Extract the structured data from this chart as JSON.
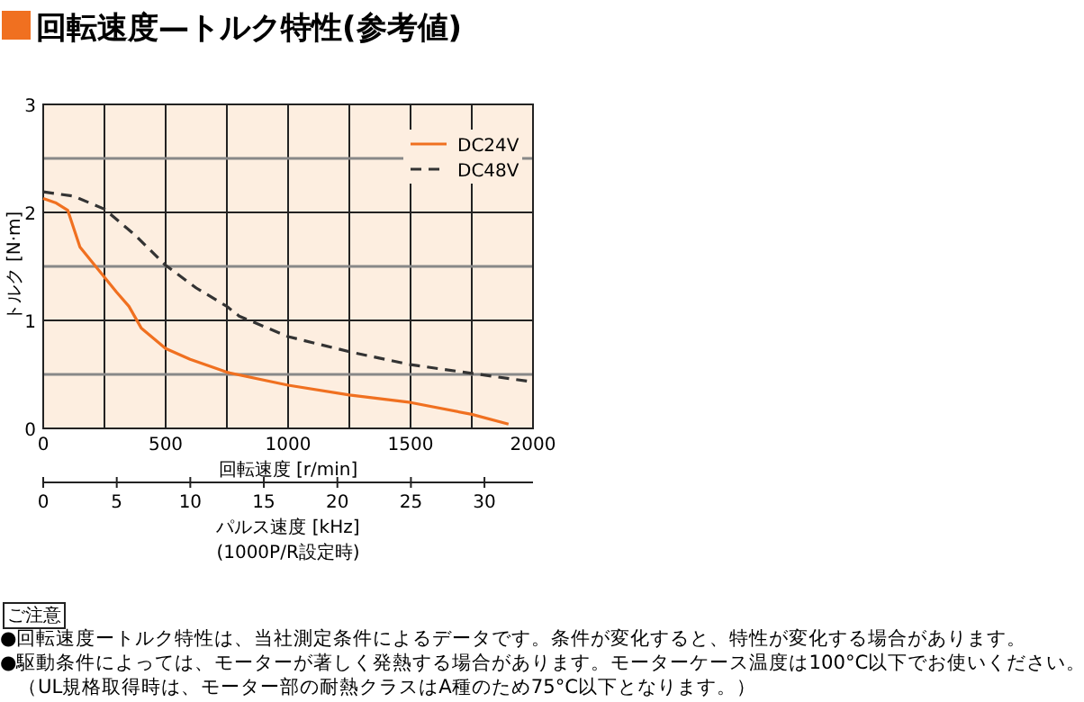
{
  "chart_data": {
    "type": "line",
    "title": "回転速度—トルク特性(参考値)",
    "xlabel": "回転速度 [r/min]",
    "ylabel": "トルク [N·m]",
    "x2label": "パルス速度 [kHz]",
    "xlim": [
      0,
      2000
    ],
    "xticks": [
      0,
      500,
      1000,
      1500,
      2000
    ],
    "ylim": [
      0,
      3
    ],
    "yticks": [
      0,
      1,
      2,
      3
    ],
    "x2lim": [
      0,
      33.3
    ],
    "x2ticks": [
      0,
      5,
      10,
      15,
      20,
      25,
      30
    ],
    "grid": true,
    "legend": "top right",
    "series": [
      {
        "name": "DC24V",
        "color": "#f07020",
        "line_style": "solid",
        "x": [
          0,
          50,
          100,
          150,
          200,
          250,
          300,
          350,
          400,
          500,
          600,
          750,
          1000,
          1250,
          1500,
          1750,
          1900
        ],
        "values": [
          2.13,
          2.09,
          2.02,
          1.68,
          1.54,
          1.4,
          1.26,
          1.13,
          0.93,
          0.74,
          0.64,
          0.52,
          0.4,
          0.31,
          0.24,
          0.13,
          0.04
        ]
      },
      {
        "name": "DC48V",
        "color": "#333333",
        "line_style": "dashed",
        "x": [
          0,
          125,
          250,
          375,
          500,
          625,
          750,
          800,
          1000,
          1250,
          1500,
          1750,
          2000
        ],
        "values": [
          2.19,
          2.15,
          2.03,
          1.79,
          1.51,
          1.3,
          1.13,
          1.04,
          0.85,
          0.71,
          0.59,
          0.51,
          0.43
        ]
      }
    ],
    "annotations": [
      "(1000P/R設定時)",
      "ご注意",
      "●回転速度ートルク特性は、当社測定条件によるデータです。条件が変化すると、特性が変化する場合があります。",
      "●駆動条件によっては、モーターが著しく発熱する場合があります。モーターケース温度は100°C以下でお使いください。",
      "（UL規格取得時は、モーター部の耐熱クラスはA種のため75°C以下となります。）"
    ]
  }
}
